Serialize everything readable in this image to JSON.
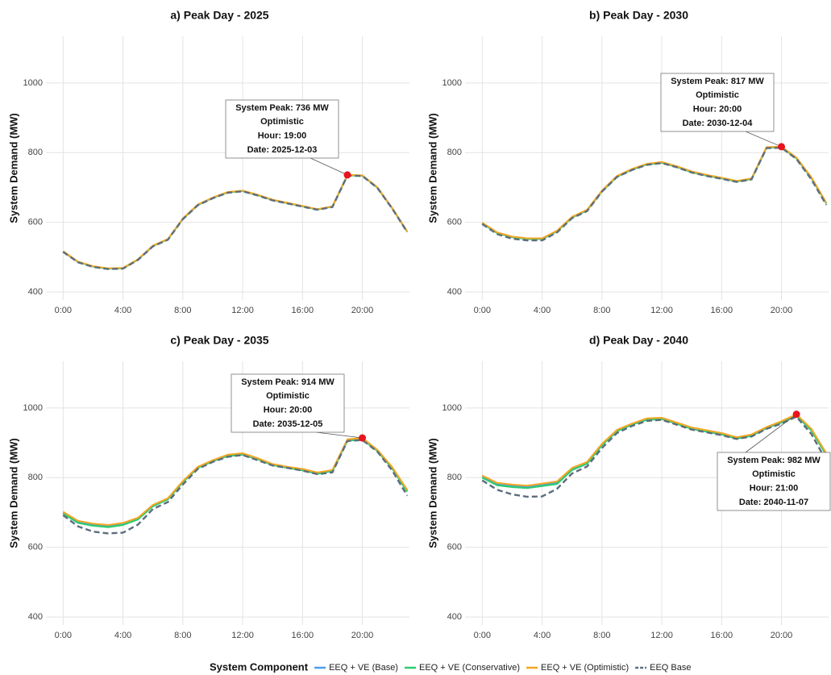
{
  "chart_data": [
    {
      "type": "line",
      "title": "a) Peak Day - 2025",
      "ylabel": "System Demand (MW)",
      "x": [
        0,
        1,
        2,
        3,
        4,
        5,
        6,
        7,
        8,
        9,
        10,
        11,
        12,
        13,
        14,
        15,
        16,
        17,
        18,
        19,
        20,
        21,
        22,
        23
      ],
      "xlim": [
        -1.15,
        23.15
      ],
      "xticks": [
        {
          "value": 0,
          "label": "0:00"
        },
        {
          "value": 4,
          "label": "4:00"
        },
        {
          "value": 8,
          "label": "8:00"
        },
        {
          "value": 12,
          "label": "12:00"
        },
        {
          "value": 16,
          "label": "16:00"
        },
        {
          "value": 20,
          "label": "20:00"
        }
      ],
      "ylim": [
        377,
        1134
      ],
      "yticks": [
        400,
        600,
        800,
        1000
      ],
      "grid": true,
      "series": [
        {
          "values": [
            516,
            486,
            473,
            467,
            468,
            493,
            532,
            551,
            610,
            650,
            670,
            686,
            690,
            678,
            664,
            655,
            646,
            637,
            645,
            735,
            734,
            700,
            640,
            573
          ]
        },
        {
          "values": [
            516,
            486,
            473,
            467,
            468,
            493,
            532,
            551,
            610,
            650,
            670,
            686,
            690,
            678,
            664,
            655,
            646,
            637,
            645,
            735,
            734,
            700,
            640,
            573
          ]
        },
        {
          "values": [
            517,
            487,
            474,
            468,
            469,
            494,
            533,
            552,
            611,
            651,
            671,
            687,
            691,
            679,
            665,
            656,
            647,
            638,
            646,
            736,
            735,
            701,
            641,
            574
          ]
        },
        {
          "values": [
            515,
            485,
            472,
            466,
            467,
            492,
            531,
            550,
            609,
            649,
            669,
            685,
            689,
            677,
            663,
            654,
            645,
            636,
            644,
            734,
            733,
            699,
            639,
            572
          ]
        }
      ],
      "annotation": {
        "x": 19,
        "y": 736,
        "lines": [
          "System Peak: 736 MW",
          "Optimistic",
          "Hour: 19:00",
          "Date: 2025-12-03"
        ]
      }
    },
    {
      "type": "line",
      "title": "b) Peak Day - 2030",
      "ylabel": "System Demand (MW)",
      "x": [
        0,
        1,
        2,
        3,
        4,
        5,
        6,
        7,
        8,
        9,
        10,
        11,
        12,
        13,
        14,
        15,
        16,
        17,
        18,
        19,
        20,
        21,
        22,
        23
      ],
      "xlim": [
        -1.15,
        23.15
      ],
      "xticks": [
        {
          "value": 0,
          "label": "0:00"
        },
        {
          "value": 4,
          "label": "4:00"
        },
        {
          "value": 8,
          "label": "8:00"
        },
        {
          "value": 12,
          "label": "12:00"
        },
        {
          "value": 16,
          "label": "16:00"
        },
        {
          "value": 20,
          "label": "20:00"
        }
      ],
      "ylim": [
        377,
        1134
      ],
      "yticks": [
        400,
        600,
        800,
        1000
      ],
      "grid": true,
      "series": [
        {
          "values": [
            598,
            570,
            558,
            553,
            553,
            575,
            615,
            635,
            690,
            732,
            752,
            767,
            772,
            760,
            745,
            735,
            727,
            718,
            725,
            815,
            816,
            785,
            728,
            655
          ]
        },
        {
          "values": [
            597,
            569,
            557,
            552,
            552,
            574,
            614,
            634,
            689,
            731,
            751,
            766,
            771,
            759,
            744,
            734,
            726,
            717,
            724,
            814,
            815,
            784,
            727,
            654
          ]
        },
        {
          "values": [
            599,
            571,
            559,
            554,
            554,
            576,
            616,
            636,
            691,
            733,
            753,
            768,
            773,
            761,
            746,
            736,
            728,
            719,
            726,
            816,
            817,
            786,
            729,
            656
          ]
        },
        {
          "values": [
            595,
            566,
            553,
            548,
            548,
            571,
            612,
            632,
            688,
            730,
            750,
            765,
            770,
            758,
            743,
            733,
            725,
            716,
            723,
            813,
            814,
            782,
            723,
            650
          ]
        }
      ],
      "annotation": {
        "x": 20,
        "y": 817,
        "lines": [
          "System Peak: 817 MW",
          "Optimistic",
          "Hour: 20:00",
          "Date: 2030-12-04"
        ]
      }
    },
    {
      "type": "line",
      "title": "c) Peak Day - 2035",
      "ylabel": "System Demand (MW)",
      "x": [
        0,
        1,
        2,
        3,
        4,
        5,
        6,
        7,
        8,
        9,
        10,
        11,
        12,
        13,
        14,
        15,
        16,
        17,
        18,
        19,
        20,
        21,
        22,
        23
      ],
      "xlim": [
        -1.15,
        23.15
      ],
      "xticks": [
        {
          "value": 0,
          "label": "0:00"
        },
        {
          "value": 4,
          "label": "4:00"
        },
        {
          "value": 8,
          "label": "8:00"
        },
        {
          "value": 12,
          "label": "12:00"
        },
        {
          "value": 16,
          "label": "16:00"
        },
        {
          "value": 20,
          "label": "20:00"
        }
      ],
      "ylim": [
        377,
        1134
      ],
      "yticks": [
        400,
        600,
        800,
        1000
      ],
      "grid": true,
      "series": [
        {
          "values": [
            700,
            673,
            665,
            661,
            667,
            683,
            720,
            740,
            789,
            830,
            849,
            864,
            868,
            855,
            838,
            830,
            823,
            813,
            821,
            908,
            912,
            879,
            828,
            763
          ]
        },
        {
          "values": [
            697,
            670,
            662,
            658,
            664,
            680,
            718,
            738,
            787,
            828,
            847,
            862,
            866,
            853,
            836,
            828,
            821,
            811,
            819,
            906,
            910,
            877,
            826,
            760
          ]
        },
        {
          "values": [
            702,
            676,
            668,
            664,
            670,
            685,
            722,
            741,
            790,
            831,
            850,
            866,
            870,
            856,
            839,
            831,
            825,
            815,
            822,
            910,
            914,
            880,
            830,
            765
          ]
        },
        {
          "values": [
            692,
            660,
            645,
            640,
            642,
            665,
            710,
            730,
            780,
            825,
            845,
            860,
            865,
            850,
            835,
            828,
            820,
            810,
            815,
            905,
            908,
            875,
            820,
            748
          ]
        }
      ],
      "annotation": {
        "x": 20,
        "y": 914,
        "lines": [
          "System Peak: 914 MW",
          "Optimistic",
          "Hour: 20:00",
          "Date: 2035-12-05"
        ]
      }
    },
    {
      "type": "line",
      "title": "d) Peak Day - 2040",
      "ylabel": "System Demand (MW)",
      "x": [
        0,
        1,
        2,
        3,
        4,
        5,
        6,
        7,
        8,
        9,
        10,
        11,
        12,
        13,
        14,
        15,
        16,
        17,
        18,
        19,
        20,
        21,
        22,
        23
      ],
      "xlim": [
        -1.15,
        23.15
      ],
      "xticks": [
        {
          "value": 0,
          "label": "0:00"
        },
        {
          "value": 4,
          "label": "4:00"
        },
        {
          "value": 8,
          "label": "8:00"
        },
        {
          "value": 12,
          "label": "12:00"
        },
        {
          "value": 16,
          "label": "16:00"
        },
        {
          "value": 20,
          "label": "20:00"
        }
      ],
      "ylim": [
        377,
        1134
      ],
      "yticks": [
        400,
        600,
        800,
        1000
      ],
      "grid": true,
      "series": [
        {
          "values": [
            803,
            781,
            776,
            773,
            779,
            785,
            825,
            843,
            895,
            935,
            953,
            968,
            970,
            956,
            942,
            934,
            926,
            914,
            922,
            943,
            960,
            980,
            938,
            867
          ]
        },
        {
          "values": [
            800,
            778,
            773,
            770,
            776,
            782,
            822,
            840,
            893,
            933,
            952,
            966,
            968,
            955,
            940,
            932,
            924,
            912,
            920,
            942,
            958,
            978,
            935,
            865
          ]
        },
        {
          "values": [
            806,
            785,
            780,
            777,
            783,
            789,
            828,
            845,
            897,
            937,
            955,
            970,
            972,
            958,
            944,
            936,
            928,
            916,
            924,
            945,
            962,
            982,
            940,
            870
          ]
        },
        {
          "values": [
            792,
            765,
            752,
            745,
            746,
            768,
            812,
            832,
            885,
            928,
            948,
            963,
            966,
            952,
            938,
            930,
            922,
            911,
            918,
            940,
            955,
            975,
            925,
            848
          ]
        }
      ],
      "annotation": {
        "x": 21,
        "y": 982,
        "lines": [
          "System Peak: 982 MW",
          "Optimistic",
          "Hour: 21:00",
          "Date: 2040-11-07"
        ]
      }
    }
  ],
  "legend": {
    "title": "System Component",
    "series": [
      {
        "name": "EEQ + VE (Base)",
        "color": "#4f9de8"
      },
      {
        "name": "EEQ + VE (Conservative)",
        "color": "#2ecc71"
      },
      {
        "name": "EEQ + VE (Optimistic)",
        "color": "#f5a623"
      },
      {
        "name": "EEQ Base",
        "color": "#5d6d7e"
      }
    ]
  }
}
